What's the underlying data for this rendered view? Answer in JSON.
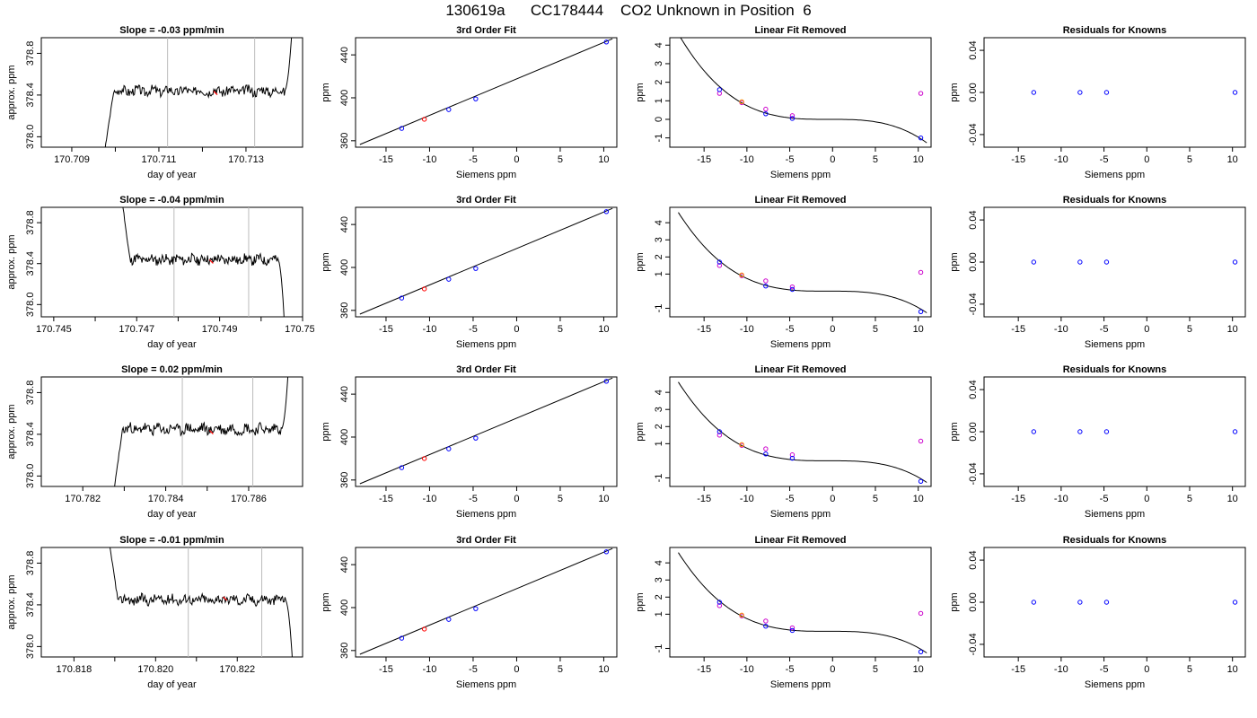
{
  "title": "130619a      CC178444    CO2 Unknown in Position  6",
  "common": {
    "xlabel_time": "day of year",
    "ylabel_time": "approx. ppm",
    "xlabel_siemens": "Siemens ppm",
    "ylabel_ppm": "ppm",
    "fit_title": "3rd Order Fit",
    "linear_title": "Linear Fit Removed",
    "resid_title": "Residuals for Knowns"
  },
  "colors": {
    "trace": "#000000",
    "vline": "#bbbbbb",
    "known": "#0000ff",
    "unknown": "#ff0000",
    "removed": "#cc00cc",
    "orange": "#ff9900"
  },
  "chart_data": [
    {
      "row": 1,
      "type": "line",
      "title": "Slope =  -0.03  ppm/min",
      "xlabel": "day of year",
      "ylabel": "approx. ppm",
      "xlim": [
        170.7083,
        170.7143
      ],
      "ylim": [
        377.9,
        378.95
      ],
      "xticks": [
        "170.709",
        "170.711",
        "170.713"
      ],
      "xtick_values": [
        170.709,
        170.711,
        170.713
      ],
      "yticks": [
        "378.0",
        "378.4",
        "378.8"
      ],
      "ytick_values": [
        378.0,
        378.4,
        378.8
      ],
      "vlines": [
        170.7112,
        170.7132
      ],
      "start": 170.7097,
      "end": 170.7141,
      "level": 378.44,
      "noise": 0.045,
      "seed": 3,
      "lead": "rise",
      "trail": "rise",
      "red_marks": [
        [
          170.7123,
          378.42
        ]
      ]
    },
    {
      "row": 1,
      "type": "line",
      "title": "3rd Order Fit",
      "xlabel": "Siemens ppm",
      "ylabel": "ppm",
      "xlim": [
        -18.5,
        11.5
      ],
      "ylim": [
        354,
        456
      ],
      "xticks": [
        "-15",
        "-10",
        "-5",
        "0",
        "5",
        "10"
      ],
      "xtick_values": [
        -15,
        -10,
        -5,
        0,
        5,
        10
      ],
      "yticks": [
        "360",
        "400",
        "440"
      ],
      "ytick_values": [
        360,
        400,
        440
      ],
      "line": [
        [
          -18,
          356.5
        ],
        [
          11,
          455
        ]
      ],
      "known_points": [
        [
          -13.2,
          371.5
        ],
        [
          -7.8,
          389
        ],
        [
          -4.7,
          399
        ],
        [
          10.3,
          452
        ]
      ],
      "unknown_points": [
        [
          -10.6,
          380
        ]
      ]
    },
    {
      "row": 1,
      "type": "scatter",
      "title": "Linear Fit Removed",
      "xlabel": "Siemens ppm",
      "ylabel": "ppm",
      "xlim": [
        -19,
        11.5
      ],
      "ylim": [
        -1.5,
        4.4
      ],
      "xticks": [
        "-15",
        "-10",
        "-5",
        "0",
        "5",
        "10"
      ],
      "xtick_values": [
        -15,
        -10,
        -5,
        0,
        5,
        10
      ],
      "yticks": [
        "-1",
        "0",
        "1",
        "2",
        "3",
        "4"
      ],
      "ytick_values": [
        -1,
        0,
        1,
        2,
        3,
        4
      ],
      "curve_coeffs": [
        0,
        0,
        -0.0011,
        -0.00085
      ],
      "curve_range": [
        -18,
        11
      ],
      "known_points": [
        [
          -13.2,
          1.6
        ],
        [
          -7.8,
          0.3
        ],
        [
          -4.7,
          0.05
        ],
        [
          10.3,
          -1.0
        ]
      ],
      "removed_points": [
        [
          -13.2,
          1.4
        ],
        [
          -10.6,
          0.9
        ],
        [
          -7.8,
          0.55
        ],
        [
          -4.7,
          0.2
        ],
        [
          10.3,
          1.4
        ]
      ],
      "orange_points": [
        [
          -10.6,
          0.95
        ]
      ]
    },
    {
      "row": 1,
      "type": "scatter",
      "title": "Residuals for Knowns",
      "xlabel": "Siemens ppm",
      "ylabel": "ppm",
      "xlim": [
        -19,
        11.5
      ],
      "ylim": [
        -0.052,
        0.052
      ],
      "xticks": [
        "-15",
        "-10",
        "-5",
        "0",
        "5",
        "10"
      ],
      "xtick_values": [
        -15,
        -10,
        -5,
        0,
        5,
        10
      ],
      "yticks": [
        "-0.04",
        "0.00",
        "0.04"
      ],
      "ytick_values": [
        -0.04,
        0,
        0.04
      ],
      "known_points": [
        [
          -13.2,
          0
        ],
        [
          -7.8,
          0
        ],
        [
          -4.7,
          0
        ],
        [
          10.3,
          0
        ]
      ]
    },
    {
      "row": 2,
      "type": "line",
      "title": "Slope =  -0.04  ppm/min",
      "xlabel": "day of year",
      "ylabel": "approx. ppm",
      "xlim": [
        170.7447,
        170.751
      ],
      "ylim": [
        377.88,
        378.95
      ],
      "xticks": [
        "170.745",
        "170.747",
        "170.749",
        "170.751"
      ],
      "xtick_values": [
        170.745,
        170.747,
        170.749,
        170.751
      ],
      "yticks": [
        "378.0",
        "378.4",
        "378.8"
      ],
      "ytick_values": [
        378.0,
        378.4,
        378.8
      ],
      "vlines": [
        170.7479,
        170.7497
      ],
      "start": 170.7466,
      "end": 170.7506,
      "level": 378.44,
      "noise": 0.045,
      "seed": 11,
      "lead": "drop",
      "trail": "drop",
      "red_marks": [
        [
          170.7488,
          378.42
        ]
      ]
    },
    {
      "row": 2,
      "type": "line",
      "title": "3rd Order Fit",
      "xlabel": "Siemens ppm",
      "ylabel": "ppm",
      "xlim": [
        -18.5,
        11.5
      ],
      "ylim": [
        354,
        456
      ],
      "xticks": [
        "-15",
        "-10",
        "-5",
        "0",
        "5",
        "10"
      ],
      "xtick_values": [
        -15,
        -10,
        -5,
        0,
        5,
        10
      ],
      "yticks": [
        "360",
        "400",
        "440"
      ],
      "ytick_values": [
        360,
        400,
        440
      ],
      "line": [
        [
          -18,
          356.5
        ],
        [
          11,
          455
        ]
      ],
      "known_points": [
        [
          -13.2,
          371.5
        ],
        [
          -7.8,
          389
        ],
        [
          -4.7,
          399
        ],
        [
          10.3,
          452
        ]
      ],
      "unknown_points": [
        [
          -10.6,
          380
        ]
      ]
    },
    {
      "row": 2,
      "type": "scatter",
      "title": "Linear Fit Removed",
      "xlabel": "Siemens ppm",
      "ylabel": "ppm",
      "xlim": [
        -19,
        11.5
      ],
      "ylim": [
        -1.5,
        4.9
      ],
      "xticks": [
        "-15",
        "-10",
        "-5",
        "0",
        "5",
        "10"
      ],
      "xtick_values": [
        -15,
        -10,
        -5,
        0,
        5,
        10
      ],
      "yticks": [
        "-1",
        "1",
        "2",
        "3",
        "4"
      ],
      "ytick_values": [
        -1,
        1,
        2,
        3,
        4
      ],
      "curve_coeffs": [
        0,
        0,
        -0.0011,
        -0.00085
      ],
      "curve_range": [
        -18,
        11
      ],
      "known_points": [
        [
          -13.2,
          1.7
        ],
        [
          -7.8,
          0.3
        ],
        [
          -4.7,
          0.1
        ],
        [
          10.3,
          -1.2
        ]
      ],
      "removed_points": [
        [
          -13.2,
          1.5
        ],
        [
          -10.6,
          0.9
        ],
        [
          -7.8,
          0.6
        ],
        [
          -4.7,
          0.25
        ],
        [
          10.3,
          1.1
        ]
      ],
      "orange_points": [
        [
          -10.6,
          0.95
        ]
      ]
    },
    {
      "row": 2,
      "type": "scatter",
      "title": "Residuals for Knowns",
      "xlabel": "Siemens ppm",
      "ylabel": "ppm",
      "xlim": [
        -19,
        11.5
      ],
      "ylim": [
        -0.052,
        0.052
      ],
      "xticks": [
        "-15",
        "-10",
        "-5",
        "0",
        "5",
        "10"
      ],
      "xtick_values": [
        -15,
        -10,
        -5,
        0,
        5,
        10
      ],
      "yticks": [
        "-0.04",
        "0.00",
        "0.04"
      ],
      "ytick_values": [
        -0.04,
        0,
        0.04
      ],
      "known_points": [
        [
          -13.2,
          0
        ],
        [
          -7.8,
          0
        ],
        [
          -4.7,
          0
        ],
        [
          10.3,
          0
        ]
      ]
    },
    {
      "row": 3,
      "type": "line",
      "title": "Slope =  0.02  ppm/min",
      "xlabel": "day of year",
      "ylabel": "approx. ppm",
      "xlim": [
        170.781,
        170.7873
      ],
      "ylim": [
        377.9,
        378.95
      ],
      "xticks": [
        "170.782",
        "170.784",
        "170.786"
      ],
      "xtick_values": [
        170.782,
        170.784,
        170.786
      ],
      "yticks": [
        "378.0",
        "378.4",
        "378.8"
      ],
      "ytick_values": [
        378.0,
        378.4,
        378.8
      ],
      "vlines": [
        170.7844,
        170.7861
      ],
      "start": 170.7827,
      "end": 170.787,
      "level": 378.45,
      "noise": 0.05,
      "seed": 23,
      "lead": "rise",
      "trail": "rise",
      "red_marks": [
        [
          170.7851,
          378.42
        ]
      ]
    },
    {
      "row": 3,
      "type": "line",
      "title": "3rd Order Fit",
      "xlabel": "Siemens ppm",
      "ylabel": "ppm",
      "xlim": [
        -18.5,
        11.5
      ],
      "ylim": [
        354,
        456
      ],
      "xticks": [
        "-15",
        "-10",
        "-5",
        "0",
        "5",
        "10"
      ],
      "xtick_values": [
        -15,
        -10,
        -5,
        0,
        5,
        10
      ],
      "yticks": [
        "360",
        "400",
        "440"
      ],
      "ytick_values": [
        360,
        400,
        440
      ],
      "line": [
        [
          -18,
          356.5
        ],
        [
          11,
          455
        ]
      ],
      "known_points": [
        [
          -13.2,
          371.5
        ],
        [
          -7.8,
          389
        ],
        [
          -4.7,
          399
        ],
        [
          10.3,
          452
        ]
      ],
      "unknown_points": [
        [
          -10.6,
          380
        ]
      ]
    },
    {
      "row": 3,
      "type": "scatter",
      "title": "Linear Fit Removed",
      "xlabel": "Siemens ppm",
      "ylabel": "ppm",
      "xlim": [
        -19,
        11.5
      ],
      "ylim": [
        -1.5,
        4.9
      ],
      "xticks": [
        "-15",
        "-10",
        "-5",
        "0",
        "5",
        "10"
      ],
      "xtick_values": [
        -15,
        -10,
        -5,
        0,
        5,
        10
      ],
      "yticks": [
        "-1",
        "1",
        "2",
        "3",
        "4"
      ],
      "ytick_values": [
        -1,
        1,
        2,
        3,
        4
      ],
      "curve_coeffs": [
        0,
        0,
        -0.0011,
        -0.00085
      ],
      "curve_range": [
        -18,
        11
      ],
      "known_points": [
        [
          -13.2,
          1.7
        ],
        [
          -7.8,
          0.4
        ],
        [
          -4.7,
          0.15
        ],
        [
          10.3,
          -1.2
        ]
      ],
      "removed_points": [
        [
          -13.2,
          1.5
        ],
        [
          -10.6,
          0.9
        ],
        [
          -7.8,
          0.7
        ],
        [
          -4.7,
          0.35
        ],
        [
          10.3,
          1.15
        ]
      ],
      "orange_points": [
        [
          -10.6,
          0.95
        ]
      ]
    },
    {
      "row": 3,
      "type": "scatter",
      "title": "Residuals for Knowns",
      "xlabel": "Siemens ppm",
      "ylabel": "ppm",
      "xlim": [
        -19,
        11.5
      ],
      "ylim": [
        -0.052,
        0.052
      ],
      "xticks": [
        "-15",
        "-10",
        "-5",
        "0",
        "5",
        "10"
      ],
      "xtick_values": [
        -15,
        -10,
        -5,
        0,
        5,
        10
      ],
      "yticks": [
        "-0.04",
        "0.00",
        "0.04"
      ],
      "ytick_values": [
        -0.04,
        0,
        0.04
      ],
      "known_points": [
        [
          -13.2,
          0
        ],
        [
          -7.8,
          0
        ],
        [
          -4.7,
          0
        ],
        [
          10.3,
          0
        ]
      ]
    },
    {
      "row": 4,
      "type": "line",
      "title": "Slope =  -0.01  ppm/min",
      "xlabel": "day of year",
      "ylabel": "approx. ppm",
      "xlim": [
        170.8172,
        170.8236
      ],
      "ylim": [
        377.9,
        378.95
      ],
      "xticks": [
        "170.818",
        "170.820",
        "170.822"
      ],
      "xtick_values": [
        170.818,
        170.82,
        170.822
      ],
      "yticks": [
        "378.0",
        "378.4",
        "378.8"
      ],
      "ytick_values": [
        378.0,
        378.4,
        378.8
      ],
      "vlines": [
        170.8208,
        170.8226
      ],
      "start": 170.8188,
      "end": 170.8234,
      "level": 378.45,
      "noise": 0.045,
      "seed": 37,
      "lead": "drop",
      "trail": "drop",
      "red_marks": [
        [
          170.8217,
          378.46
        ]
      ]
    },
    {
      "row": 4,
      "type": "line",
      "title": "3rd Order Fit",
      "xlabel": "Siemens ppm",
      "ylabel": "ppm",
      "xlim": [
        -18.5,
        11.5
      ],
      "ylim": [
        354,
        456
      ],
      "xticks": [
        "-15",
        "-10",
        "-5",
        "0",
        "5",
        "10"
      ],
      "xtick_values": [
        -15,
        -10,
        -5,
        0,
        5,
        10
      ],
      "yticks": [
        "360",
        "400",
        "440"
      ],
      "ytick_values": [
        360,
        400,
        440
      ],
      "line": [
        [
          -18,
          356.5
        ],
        [
          11,
          455
        ]
      ],
      "known_points": [
        [
          -13.2,
          371.5
        ],
        [
          -7.8,
          389
        ],
        [
          -4.7,
          399
        ],
        [
          10.3,
          452
        ]
      ],
      "unknown_points": [
        [
          -10.6,
          380
        ]
      ]
    },
    {
      "row": 4,
      "type": "scatter",
      "title": "Linear Fit Removed",
      "xlabel": "Siemens ppm",
      "ylabel": "ppm",
      "xlim": [
        -19,
        11.5
      ],
      "ylim": [
        -1.5,
        4.9
      ],
      "xticks": [
        "-15",
        "-10",
        "-5",
        "0",
        "5",
        "10"
      ],
      "xtick_values": [
        -15,
        -10,
        -5,
        0,
        5,
        10
      ],
      "yticks": [
        "-1",
        "1",
        "2",
        "3",
        "4"
      ],
      "ytick_values": [
        -1,
        1,
        2,
        3,
        4
      ],
      "curve_coeffs": [
        0,
        0,
        -0.0011,
        -0.00085
      ],
      "curve_range": [
        -18,
        11
      ],
      "known_points": [
        [
          -13.2,
          1.7
        ],
        [
          -7.8,
          0.3
        ],
        [
          -4.7,
          0.05
        ],
        [
          10.3,
          -1.2
        ]
      ],
      "removed_points": [
        [
          -13.2,
          1.5
        ],
        [
          -10.6,
          0.9
        ],
        [
          -7.8,
          0.6
        ],
        [
          -4.7,
          0.2
        ],
        [
          10.3,
          1.05
        ]
      ],
      "orange_points": [
        [
          -10.6,
          0.95
        ]
      ]
    },
    {
      "row": 4,
      "type": "scatter",
      "title": "Residuals for Knowns",
      "xlabel": "Siemens ppm",
      "ylabel": "ppm",
      "xlim": [
        -19,
        11.5
      ],
      "ylim": [
        -0.052,
        0.052
      ],
      "xticks": [
        "-15",
        "-10",
        "-5",
        "0",
        "5",
        "10"
      ],
      "xtick_values": [
        -15,
        -10,
        -5,
        0,
        5,
        10
      ],
      "yticks": [
        "-0.04",
        "0.00",
        "0.04"
      ],
      "ytick_values": [
        -0.04,
        0,
        0.04
      ],
      "known_points": [
        [
          -13.2,
          0
        ],
        [
          -7.8,
          0
        ],
        [
          -4.7,
          0
        ],
        [
          10.3,
          0
        ]
      ]
    }
  ]
}
